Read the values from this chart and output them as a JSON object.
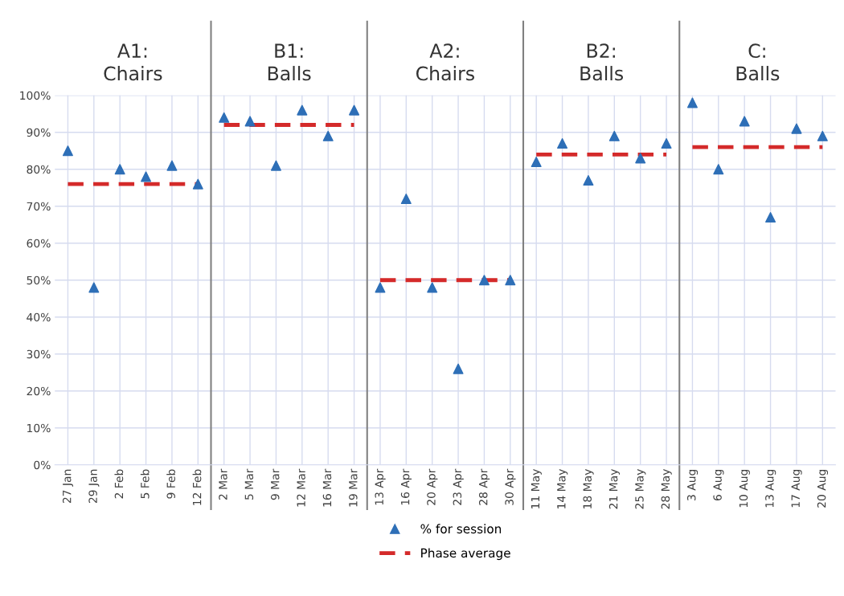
{
  "chart_data": {
    "type": "scatter",
    "categories": [
      "27 Jan",
      "29 Jan",
      "2 Feb",
      "5 Feb",
      "9 Feb",
      "12 Feb",
      "2 Mar",
      "5 Mar",
      "9 Mar",
      "12 Mar",
      "16 Mar",
      "19 Mar",
      "13 Apr",
      "16 Apr",
      "20 Apr",
      "23 Apr",
      "28 Apr",
      "30 Apr",
      "11 May",
      "14 May",
      "18 May",
      "21 May",
      "25 May",
      "28 May",
      "3 Aug",
      "6 Aug",
      "10 Aug",
      "13 Aug",
      "17 Aug",
      "20 Aug"
    ],
    "series": [
      {
        "name": "% for session",
        "marker": "triangle",
        "color": "#2e6fb7",
        "values": [
          85,
          48,
          80,
          78,
          81,
          76,
          94,
          93,
          81,
          96,
          89,
          96,
          48,
          72,
          48,
          26,
          50,
          50,
          82,
          87,
          77,
          89,
          83,
          87,
          98,
          80,
          93,
          67,
          91,
          89
        ]
      },
      {
        "name": "Phase average",
        "type": "line",
        "line_style": "dashed",
        "marker": "none",
        "color": "#d42a2a",
        "values": [
          76,
          76,
          76,
          76,
          76,
          76,
          null,
          null,
          null,
          null,
          null,
          null,
          null,
          null,
          null,
          null,
          null,
          null,
          null,
          null,
          null,
          null,
          null,
          null,
          null,
          null,
          null,
          null,
          null,
          null
        ]
      },
      {
        "type": "line",
        "line_style": "dashed",
        "marker": "none",
        "color": "#d42a2a",
        "values": [
          null,
          null,
          null,
          null,
          null,
          null,
          92,
          92,
          92,
          92,
          92,
          92,
          null,
          null,
          null,
          null,
          null,
          null,
          null,
          null,
          null,
          null,
          null,
          null,
          null,
          null,
          null,
          null,
          null,
          null
        ]
      },
      {
        "type": "line",
        "line_style": "dashed",
        "marker": "none",
        "color": "#d42a2a",
        "values": [
          null,
          null,
          null,
          null,
          null,
          null,
          null,
          null,
          null,
          null,
          null,
          null,
          50,
          50,
          50,
          50,
          50,
          50,
          null,
          null,
          null,
          null,
          null,
          null,
          null,
          null,
          null,
          null,
          null,
          null
        ]
      },
      {
        "type": "line",
        "line_style": "dashed",
        "marker": "none",
        "color": "#d42a2a",
        "values": [
          null,
          null,
          null,
          null,
          null,
          null,
          null,
          null,
          null,
          null,
          null,
          null,
          null,
          null,
          null,
          null,
          null,
          null,
          84,
          84,
          84,
          84,
          84,
          84,
          null,
          null,
          null,
          null,
          null,
          null
        ]
      },
      {
        "type": "line",
        "line_style": "dashed",
        "marker": "none",
        "color": "#d42a2a",
        "values": [
          null,
          null,
          null,
          null,
          null,
          null,
          null,
          null,
          null,
          null,
          null,
          null,
          null,
          null,
          null,
          null,
          null,
          null,
          null,
          null,
          null,
          null,
          null,
          null,
          86,
          86,
          86,
          86,
          86,
          86
        ]
      }
    ],
    "annotations": [
      "A1:\nChairs",
      "B1:\nBalls",
      "A2:\nChairs",
      "B2:\nBalls",
      "C:\nBalls"
    ],
    "ylim": [
      0,
      100
    ],
    "yticks": [
      {
        "value": 0,
        "label": "0%"
      },
      {
        "value": 10,
        "label": "10%"
      },
      {
        "value": 20,
        "label": "20%"
      },
      {
        "value": 30,
        "label": "30%"
      },
      {
        "value": 40,
        "label": "40%"
      },
      {
        "value": 50,
        "label": "50%"
      },
      {
        "value": 60,
        "label": "60%"
      },
      {
        "value": 70,
        "label": "70%"
      },
      {
        "value": 80,
        "label": "80%"
      },
      {
        "value": 90,
        "label": "90%"
      },
      {
        "value": 100,
        "label": "100%"
      }
    ],
    "grid": true,
    "legend": "bottom"
  }
}
